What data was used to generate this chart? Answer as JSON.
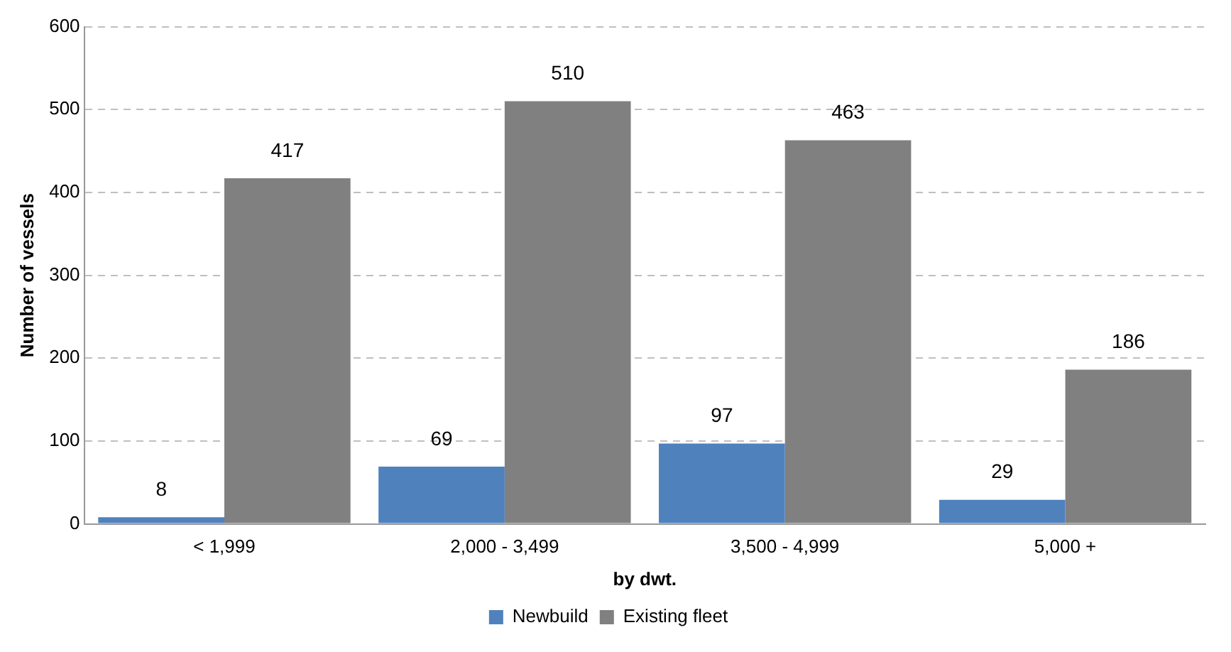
{
  "chart_data": {
    "type": "bar",
    "xlabel": "by dwt.",
    "ylabel": "Number of vessels",
    "categories": [
      "< 1,999",
      "2,000 - 3,499",
      "3,500 - 4,999",
      "5,000 +"
    ],
    "series": [
      {
        "name": "Newbuild",
        "color": "#4f81bd",
        "values": [
          8,
          69,
          97,
          29
        ]
      },
      {
        "name": "Existing fleet",
        "color": "#808080",
        "values": [
          417,
          510,
          463,
          186
        ]
      }
    ],
    "ylim": [
      0,
      600
    ],
    "yticks": [
      0,
      100,
      200,
      300,
      400,
      500,
      600
    ],
    "grid": "y",
    "legend": "bottom",
    "data_labels": true
  }
}
